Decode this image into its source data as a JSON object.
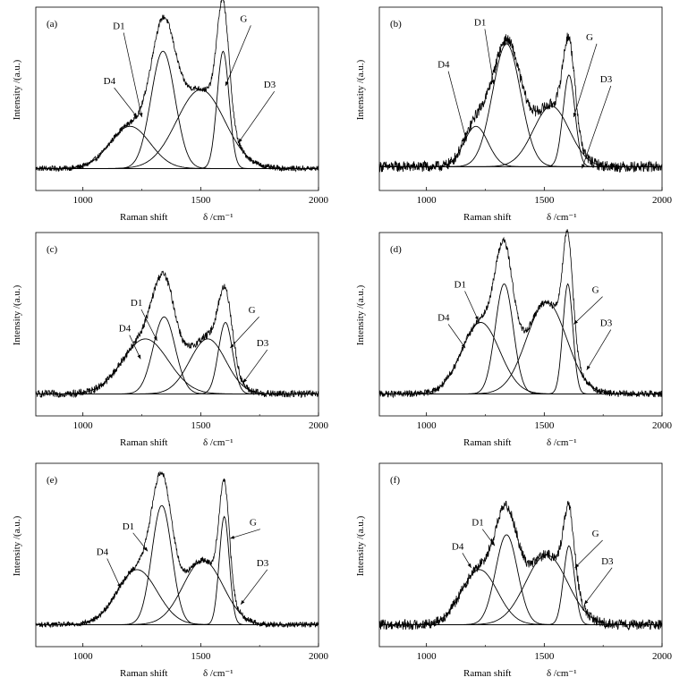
{
  "figure": {
    "xlabel": "Raman shift",
    "xunit": "δ /cm⁻¹",
    "ylabel": "Intensity /(a.u.)"
  },
  "chart_data": [
    {
      "type": "line",
      "panel": "(a)",
      "xlim": [
        800,
        2000
      ],
      "x_ticks": [
        "1000",
        "1500",
        "2000"
      ],
      "xlabel": "Raman shift δ /cm⁻¹",
      "ylabel": "Intensity /(a.u.)",
      "baseline": 0.12,
      "noise": 0.015,
      "peaks": [
        {
          "name": "D4",
          "center": 1200,
          "fwhm": 200,
          "height": 0.23
        },
        {
          "name": "D1",
          "center": 1340,
          "fwhm": 120,
          "height": 0.64
        },
        {
          "name": "D3",
          "center": 1500,
          "fwhm": 240,
          "height": 0.43
        },
        {
          "name": "G",
          "center": 1595,
          "fwhm": 60,
          "height": 0.64
        }
      ],
      "annotations": [
        {
          "text": "D1",
          "x": 1150,
          "y": 0.88,
          "tx": 1250,
          "ty": 0.4
        },
        {
          "text": "D4",
          "x": 1110,
          "y": 0.58,
          "tx": 1230,
          "ty": 0.4
        },
        {
          "text": "G",
          "x": 1690,
          "y": 0.92,
          "tx": 1605,
          "ty": 0.57
        },
        {
          "text": "D3",
          "x": 1790,
          "y": 0.56,
          "tx": 1660,
          "ty": 0.26
        }
      ]
    },
    {
      "type": "line",
      "panel": "(b)",
      "xlim": [
        800,
        2000
      ],
      "x_ticks": [
        "1000",
        "1500",
        "2000"
      ],
      "xlabel": "Raman shift δ /cm⁻¹",
      "ylabel": "Intensity /(a.u.)",
      "baseline": 0.13,
      "noise": 0.03,
      "peaks": [
        {
          "name": "D4",
          "center": 1210,
          "fwhm": 120,
          "height": 0.22
        },
        {
          "name": "D1",
          "center": 1340,
          "fwhm": 140,
          "height": 0.67
        },
        {
          "name": "D3",
          "center": 1530,
          "fwhm": 180,
          "height": 0.33
        },
        {
          "name": "G",
          "center": 1605,
          "fwhm": 60,
          "height": 0.5
        }
      ],
      "annotations": [
        {
          "text": "D1",
          "x": 1225,
          "y": 0.9,
          "tx": 1285,
          "ty": 0.58
        },
        {
          "text": "D4",
          "x": 1070,
          "y": 0.67,
          "tx": 1170,
          "ty": 0.27
        },
        {
          "text": "G",
          "x": 1700,
          "y": 0.82,
          "tx": 1625,
          "ty": 0.4
        },
        {
          "text": "D3",
          "x": 1760,
          "y": 0.59,
          "tx": 1660,
          "ty": 0.12
        }
      ]
    },
    {
      "type": "line",
      "panel": "(c)",
      "xlim": [
        800,
        2000
      ],
      "x_ticks": [
        "1000",
        "1500",
        "2000"
      ],
      "xlabel": "Raman shift δ /cm⁻¹",
      "ylabel": "Intensity /(a.u.)",
      "baseline": 0.12,
      "noise": 0.02,
      "peaks": [
        {
          "name": "D4",
          "center": 1265,
          "fwhm": 230,
          "height": 0.3
        },
        {
          "name": "D1",
          "center": 1345,
          "fwhm": 110,
          "height": 0.42
        },
        {
          "name": "D3",
          "center": 1530,
          "fwhm": 180,
          "height": 0.3
        },
        {
          "name": "G",
          "center": 1605,
          "fwhm": 70,
          "height": 0.39
        }
      ],
      "annotations": [
        {
          "text": "D1",
          "x": 1225,
          "y": 0.6,
          "tx": 1315,
          "ty": 0.41
        },
        {
          "text": "D4",
          "x": 1175,
          "y": 0.46,
          "tx": 1245,
          "ty": 0.31
        },
        {
          "text": "G",
          "x": 1725,
          "y": 0.56,
          "tx": 1625,
          "ty": 0.37
        },
        {
          "text": "D3",
          "x": 1760,
          "y": 0.38,
          "tx": 1680,
          "ty": 0.18
        }
      ]
    },
    {
      "type": "line",
      "panel": "(d)",
      "xlim": [
        800,
        2000
      ],
      "x_ticks": [
        "1000",
        "1500",
        "2000"
      ],
      "xlabel": "Raman shift δ /cm⁻¹",
      "ylabel": "Intensity /(a.u.)",
      "baseline": 0.12,
      "noise": 0.018,
      "peaks": [
        {
          "name": "D4",
          "center": 1230,
          "fwhm": 190,
          "height": 0.39
        },
        {
          "name": "D1",
          "center": 1330,
          "fwhm": 90,
          "height": 0.6
        },
        {
          "name": "D3",
          "center": 1510,
          "fwhm": 200,
          "height": 0.5
        },
        {
          "name": "G",
          "center": 1600,
          "fwhm": 50,
          "height": 0.6
        }
      ],
      "annotations": [
        {
          "text": "D1",
          "x": 1140,
          "y": 0.7,
          "tx": 1220,
          "ty": 0.52
        },
        {
          "text": "D4",
          "x": 1070,
          "y": 0.52,
          "tx": 1165,
          "ty": 0.37
        },
        {
          "text": "G",
          "x": 1725,
          "y": 0.67,
          "tx": 1625,
          "ty": 0.5
        },
        {
          "text": "D3",
          "x": 1760,
          "y": 0.49,
          "tx": 1680,
          "ty": 0.25
        }
      ]
    },
    {
      "type": "line",
      "panel": "(e)",
      "xlim": [
        800,
        2000
      ],
      "x_ticks": [
        "1000",
        "1500",
        "2000"
      ],
      "xlabel": "Raman shift δ /cm⁻¹",
      "ylabel": "Intensity /(a.u.)",
      "baseline": 0.12,
      "noise": 0.015,
      "peaks": [
        {
          "name": "D4",
          "center": 1230,
          "fwhm": 200,
          "height": 0.3
        },
        {
          "name": "D1",
          "center": 1335,
          "fwhm": 100,
          "height": 0.65
        },
        {
          "name": "D3",
          "center": 1510,
          "fwhm": 200,
          "height": 0.35
        },
        {
          "name": "G",
          "center": 1600,
          "fwhm": 50,
          "height": 0.59
        }
      ],
      "annotations": [
        {
          "text": "D1",
          "x": 1190,
          "y": 0.64,
          "tx": 1275,
          "ty": 0.52
        },
        {
          "text": "D4",
          "x": 1080,
          "y": 0.5,
          "tx": 1160,
          "ty": 0.32
        },
        {
          "text": "G",
          "x": 1730,
          "y": 0.66,
          "tx": 1625,
          "ty": 0.59
        },
        {
          "text": "D3",
          "x": 1760,
          "y": 0.44,
          "tx": 1670,
          "ty": 0.23
        }
      ]
    },
    {
      "type": "line",
      "panel": "(f)",
      "xlim": [
        800,
        2000
      ],
      "x_ticks": [
        "1000",
        "1500",
        "2000"
      ],
      "xlabel": "Raman shift δ /cm⁻¹",
      "ylabel": "Intensity /(a.u.)",
      "baseline": 0.12,
      "noise": 0.028,
      "peaks": [
        {
          "name": "D4",
          "center": 1225,
          "fwhm": 180,
          "height": 0.3
        },
        {
          "name": "D1",
          "center": 1340,
          "fwhm": 110,
          "height": 0.49
        },
        {
          "name": "D3",
          "center": 1510,
          "fwhm": 210,
          "height": 0.38
        },
        {
          "name": "G",
          "center": 1605,
          "fwhm": 55,
          "height": 0.43
        }
      ],
      "annotations": [
        {
          "text": "D1",
          "x": 1215,
          "y": 0.66,
          "tx": 1290,
          "ty": 0.55
        },
        {
          "text": "D4",
          "x": 1130,
          "y": 0.53,
          "tx": 1190,
          "ty": 0.43
        },
        {
          "text": "G",
          "x": 1725,
          "y": 0.6,
          "tx": 1630,
          "ty": 0.43
        },
        {
          "text": "D3",
          "x": 1765,
          "y": 0.45,
          "tx": 1670,
          "ty": 0.23
        }
      ]
    }
  ]
}
